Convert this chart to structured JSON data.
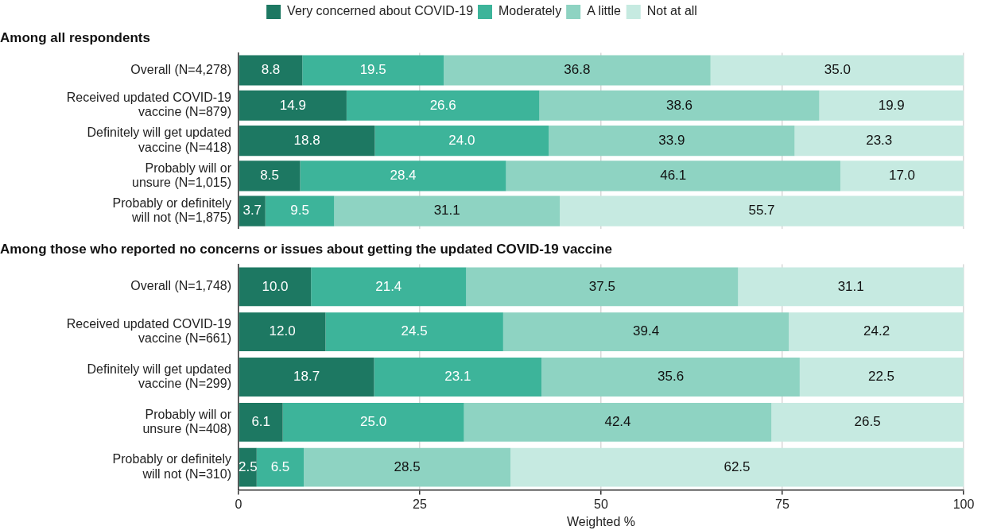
{
  "chart_data": [
    {
      "type": "bar",
      "orientation": "horizontal",
      "stacked": true,
      "title": "Among all respondents",
      "categories": [
        "Overall (N=4,278)",
        "Received updated COVID-19\nvaccine (N=879)",
        "Definitely will get updated\nvaccine (N=418)",
        "Probably will or\nunsure (N=1,015)",
        "Probably or definitely\nwill not (N=1,875)"
      ],
      "series": [
        {
          "name": "Very concerned about COVID-19",
          "color": "#1d7862",
          "values": [
            8.8,
            14.9,
            18.8,
            8.5,
            3.7
          ],
          "value_labels": [
            "8.8",
            "14.9",
            "18.8",
            "8.5",
            "3.7"
          ]
        },
        {
          "name": "Moderately",
          "color": "#3db49a",
          "values": [
            19.5,
            26.6,
            24.0,
            28.4,
            9.5
          ],
          "value_labels": [
            "19.5",
            "26.6",
            "24.0",
            "28.4",
            "9.5"
          ]
        },
        {
          "name": "A little",
          "color": "#8ed3c2",
          "values": [
            36.8,
            38.6,
            33.9,
            46.1,
            31.1
          ],
          "value_labels": [
            "36.8",
            "38.6",
            "33.9",
            "46.1",
            "31.1"
          ]
        },
        {
          "name": "Not at all",
          "color": "#c6eae1",
          "values": [
            35.0,
            19.9,
            23.3,
            17.0,
            55.7
          ],
          "value_labels": [
            "35.0",
            "19.9",
            "23.3",
            "17.0",
            "55.7"
          ]
        }
      ],
      "xlim": [
        0,
        100
      ],
      "xticks": [
        0,
        25,
        50,
        75,
        100
      ],
      "grid": "x",
      "legend": "top",
      "tick_labels": "y"
    },
    {
      "type": "bar",
      "orientation": "horizontal",
      "stacked": true,
      "title": "Among those who reported no concerns or issues about getting the updated COVID-19 vaccine",
      "xlabel": "Weighted %",
      "categories": [
        "Overall (N=1,748)",
        "Received updated COVID-19\nvaccine (N=661)",
        "Definitely will get updated\nvaccine (N=299)",
        "Probably will or\nunsure (N=408)",
        "Probably or definitely\nwill not (N=310)"
      ],
      "series": [
        {
          "color": "#1d7862",
          "values": [
            10.0,
            12.0,
            18.7,
            6.1,
            2.5
          ],
          "value_labels": [
            "10.0",
            "12.0",
            "18.7",
            "6.1",
            "2.5"
          ]
        },
        {
          "color": "#3db49a",
          "values": [
            21.4,
            24.5,
            23.1,
            25.0,
            6.5
          ],
          "value_labels": [
            "21.4",
            "24.5",
            "23.1",
            "25.0",
            "6.5"
          ]
        },
        {
          "color": "#8ed3c2",
          "values": [
            37.5,
            39.4,
            35.6,
            42.4,
            28.5
          ],
          "value_labels": [
            "37.5",
            "39.4",
            "35.6",
            "42.4",
            "28.5"
          ]
        },
        {
          "color": "#c6eae1",
          "values": [
            31.1,
            24.2,
            22.5,
            26.5,
            62.5
          ],
          "value_labels": [
            "31.1",
            "24.2",
            "22.5",
            "26.5",
            "62.5"
          ]
        }
      ],
      "xlim": [
        0,
        100
      ],
      "xticks": [
        0,
        25,
        50,
        75,
        100
      ],
      "grid": "x"
    }
  ]
}
